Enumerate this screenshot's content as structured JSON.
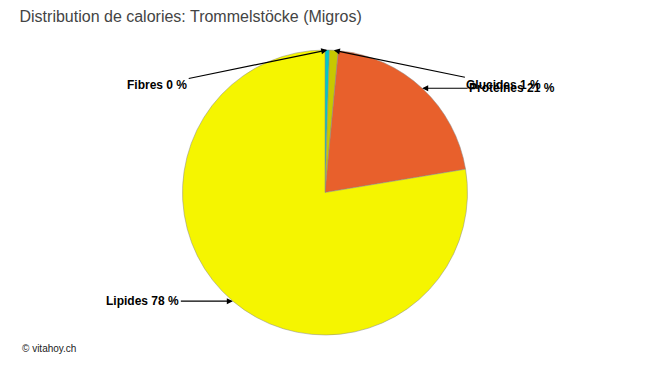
{
  "chart_data": {
    "type": "pie",
    "title": "Distribution de calories: Trommelstöcke (Migros)",
    "categories": [
      "Fibres 0 %",
      "Glucides 1 %",
      "Protéines 21 %",
      "Lipides 78 %"
    ],
    "values": [
      0.5,
      1,
      21,
      78
    ],
    "colors": [
      "#00c8c8",
      "#c8c800",
      "#e8602c",
      "#f5f500"
    ],
    "annotations": [
      "© vitahoy.ch"
    ]
  }
}
